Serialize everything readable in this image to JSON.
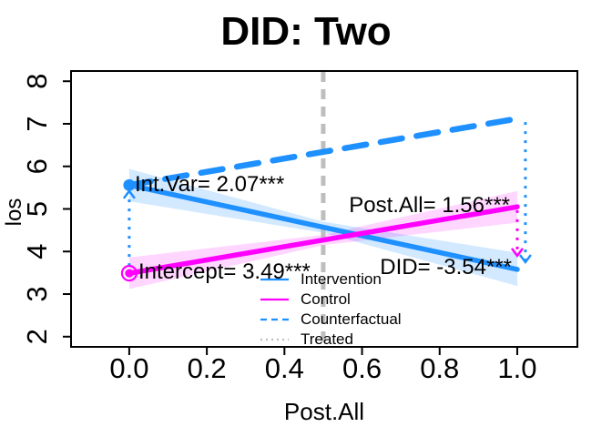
{
  "chart_data": {
    "type": "line",
    "title": "DID: Two",
    "xlabel": "Post.All",
    "ylabel": "los",
    "xlim": [
      -0.15,
      1.155
    ],
    "ylim": [
      1.76,
      8.24
    ],
    "grid": false,
    "xticks": [
      0.0,
      0.2,
      0.4,
      0.6,
      0.8,
      1.0
    ],
    "xtick_labels": [
      "0.0",
      "0.2",
      "0.4",
      "0.6",
      "0.8",
      "1.0"
    ],
    "yticks": [
      2,
      3,
      4,
      5,
      6,
      7,
      8
    ],
    "ytick_labels": [
      "2",
      "3",
      "4",
      "5",
      "6",
      "7",
      "8"
    ],
    "series": [
      {
        "name": "Intervention",
        "color": "#1E90FF",
        "style": "solid",
        "x": [
          0,
          1
        ],
        "y": [
          5.56,
          3.58
        ]
      },
      {
        "name": "Control",
        "color": "#FF00FF",
        "style": "solid",
        "x": [
          0,
          1
        ],
        "y": [
          3.49,
          5.05
        ]
      },
      {
        "name": "Counterfactual",
        "color": "#1E90FF",
        "style": "dashed",
        "x": [
          0,
          1
        ],
        "y": [
          5.56,
          7.12
        ]
      },
      {
        "name": "Treated",
        "color": "#BEBEBE",
        "style": "dashed-vline",
        "x": 0.5
      }
    ],
    "ribbons": [
      {
        "series": "Intervention",
        "color": "#1E90FF",
        "opacity": 0.2,
        "points": [
          [
            0,
            5.94
          ],
          [
            0.5,
            4.7
          ],
          [
            1,
            3.97
          ],
          [
            1,
            3.19
          ],
          [
            0.5,
            4.44
          ],
          [
            0,
            5.18
          ]
        ]
      },
      {
        "series": "Control",
        "color": "#FF00FF",
        "opacity": 0.16,
        "points": [
          [
            0,
            3.86
          ],
          [
            0.5,
            4.39
          ],
          [
            1,
            5.42
          ],
          [
            1,
            4.68
          ],
          [
            0.5,
            4.15
          ],
          [
            0,
            3.12
          ]
        ]
      }
    ],
    "markers": [
      {
        "type": "dot",
        "color": "#1E90FF",
        "x": 0,
        "y": 5.56
      },
      {
        "type": "double-circle",
        "color": "#FF00FF",
        "x": 0,
        "y": 3.49
      }
    ],
    "arrows": [
      {
        "color": "#1E90FF",
        "x": 0.0,
        "y_from": 3.66,
        "y_to": 5.42,
        "head": "up"
      },
      {
        "color": "#FF00FF",
        "x": 1.0,
        "y_from": 4.97,
        "y_to": 3.9,
        "head": "down"
      },
      {
        "color": "#1E90FF",
        "x": 1.021,
        "y_from": 7.04,
        "y_to": 3.75,
        "head": "down"
      }
    ],
    "stats": {
      "intercept": 3.49,
      "int_var": 2.07,
      "post_all": 1.56,
      "did": -3.54,
      "significance": "***"
    },
    "annotations": [
      {
        "label": "Int.Var= 2.07***",
        "x": 0,
        "y": 5.56,
        "align": "left"
      },
      {
        "label": "Intercept= 3.49***",
        "x": 0,
        "y": 3.49,
        "align": "left"
      },
      {
        "label": "Post.All= 1.56***",
        "x": 1,
        "y": 5.05,
        "align": "right"
      },
      {
        "label": "DID= -3.54***",
        "x": 1,
        "y": 3.58,
        "align": "right"
      }
    ],
    "legend": {
      "position": "inside-bottom-center",
      "items": [
        {
          "label": "Intervention",
          "color": "#1E90FF",
          "style": "solid"
        },
        {
          "label": "Control",
          "color": "#FF00FF",
          "style": "solid"
        },
        {
          "label": "Counterfactual",
          "color": "#1E90FF",
          "style": "dashed"
        },
        {
          "label": "Treated",
          "color": "#BEBEBE",
          "style": "dotted"
        }
      ]
    },
    "colors": {
      "blue": "#1E90FF",
      "magenta": "#FF00FF",
      "gray": "#BEBEBE",
      "text": "#000000"
    }
  }
}
